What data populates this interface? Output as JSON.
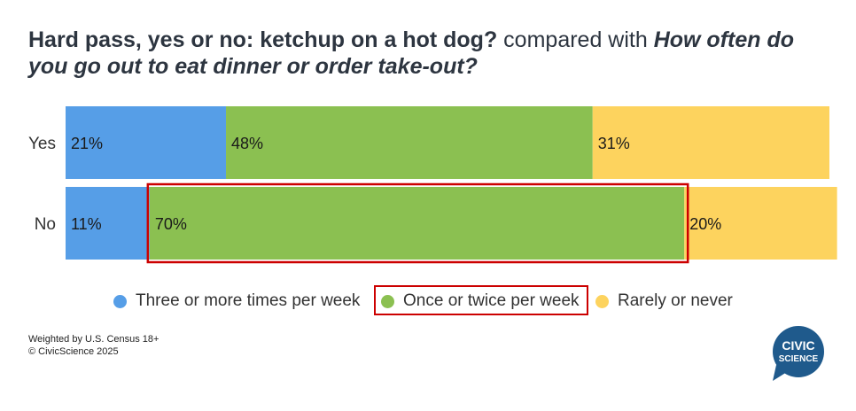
{
  "title": {
    "lead": "Hard pass, yes or no: ketchup on a hot dog?",
    "mid": " compared with ",
    "question": "How often do you go out to eat dinner or order take-out?"
  },
  "chart_data": {
    "type": "bar",
    "orientation": "horizontal",
    "stacked": true,
    "percent": true,
    "categories": [
      "Yes",
      "No"
    ],
    "series": [
      {
        "name": "Three or more times per week",
        "values": [
          21,
          11
        ],
        "color": "#569ee7"
      },
      {
        "name": "Once or twice per week",
        "values": [
          48,
          70
        ],
        "color": "#8bc051"
      },
      {
        "name": "Rarely or never",
        "values": [
          31,
          20
        ],
        "color": "#fdd35e"
      }
    ],
    "value_labels": [
      [
        "21%",
        "11%"
      ],
      [
        "48%",
        "70%"
      ],
      [
        "31%",
        "20%"
      ]
    ],
    "xlim": [
      0,
      100
    ],
    "grid": false,
    "legend_position": "bottom",
    "highlight": {
      "category": "No",
      "series": "Once or twice per week",
      "color": "#cc0000"
    }
  },
  "footnotes": {
    "line1": "Weighted by U.S. Census 18+",
    "line2": "© CivicScience 2025"
  },
  "logo": {
    "line1": "CIVIC",
    "line2": "SCIENCE",
    "color": "#1f5a8c"
  }
}
